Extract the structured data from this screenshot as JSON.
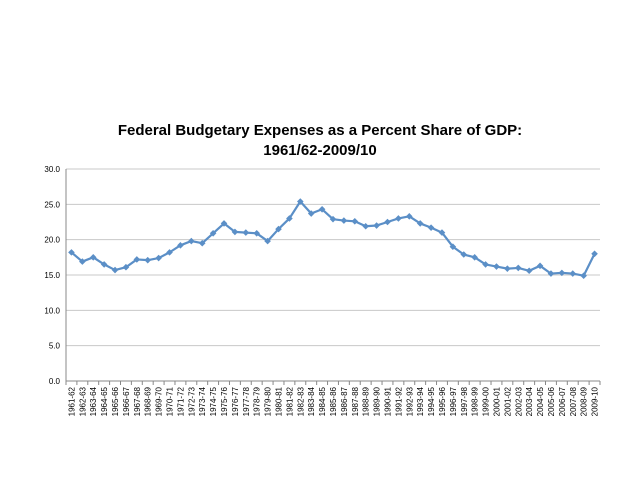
{
  "colors": {
    "series": "#5b8fc7",
    "grid": "#c8c8c8",
    "axis": "#888888"
  },
  "chart_data": {
    "type": "line",
    "title_line1": "Federal Budgetary Expenses as a Percent Share of GDP:",
    "title_line2": "1961/62-2009/10",
    "xlabel": "",
    "ylabel": "",
    "ylim": [
      0,
      30
    ],
    "yticks": [
      "0.0",
      "5.0",
      "10.0",
      "15.0",
      "20.0",
      "25.0",
      "30.0"
    ],
    "grid": true,
    "legend": "none",
    "categories": [
      "1961-62",
      "1962-63",
      "1963-64",
      "1964-65",
      "1965-66",
      "1966-67",
      "1967-68",
      "1968-69",
      "1969-70",
      "1970-71",
      "1971-72",
      "1972-73",
      "1973-74",
      "1974-75",
      "1975-76",
      "1976-77",
      "1977-78",
      "1978-79",
      "1979-80",
      "1980-81",
      "1981-82",
      "1982-83",
      "1983-84",
      "1984-85",
      "1985-86",
      "1986-87",
      "1987-88",
      "1988-89",
      "1989-90",
      "1990-91",
      "1991-92",
      "1992-93",
      "1993-94",
      "1994-95",
      "1995-96",
      "1996-97",
      "1997-98",
      "1998-99",
      "1999-00",
      "2000-01",
      "2001-02",
      "2002-03",
      "2003-04",
      "2004-05",
      "2005-06",
      "2006-07",
      "2007-08",
      "2008-09",
      "2009-10"
    ],
    "values": [
      18.2,
      16.9,
      17.5,
      16.5,
      15.7,
      16.1,
      17.2,
      17.1,
      17.4,
      18.2,
      19.2,
      19.8,
      19.5,
      20.9,
      22.3,
      21.1,
      21.0,
      20.9,
      19.8,
      21.5,
      23.0,
      25.4,
      23.7,
      24.3,
      22.9,
      22.7,
      22.6,
      21.9,
      22.0,
      22.5,
      23.0,
      23.3,
      22.3,
      21.7,
      21.0,
      19.0,
      17.9,
      17.5,
      16.5,
      16.2,
      15.9,
      16.0,
      15.6,
      16.3,
      15.2,
      15.3,
      15.2,
      14.9,
      18.0
    ]
  }
}
